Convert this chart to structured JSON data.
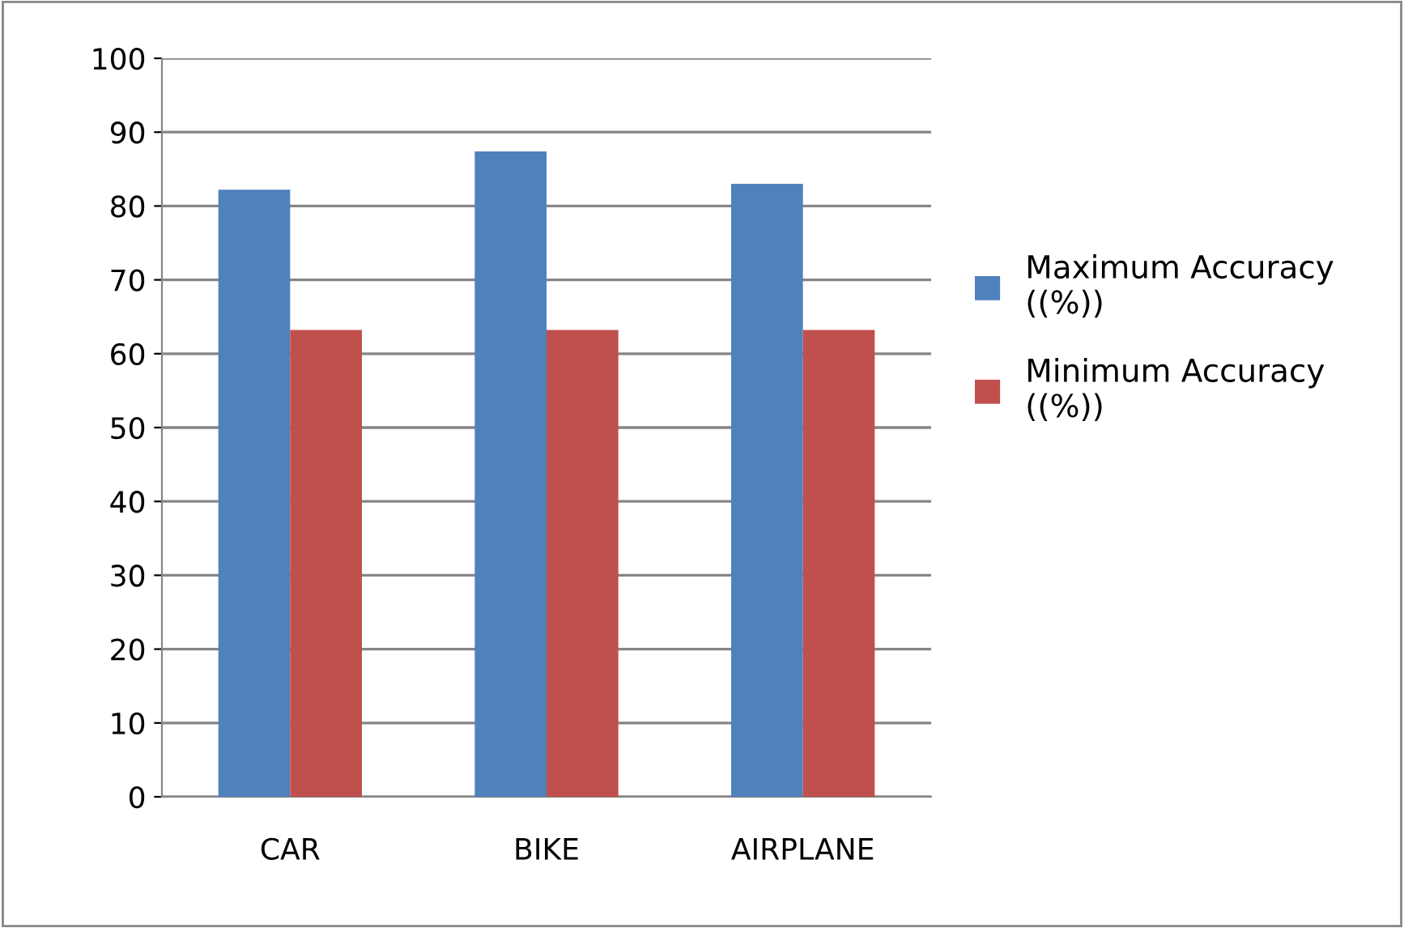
{
  "chart_data": {
    "type": "bar",
    "categories": [
      "CAR",
      "BIKE",
      "AIRPLANE"
    ],
    "series": [
      {
        "name": "Maximum Accuracy ((%))",
        "color": "#4f81bd",
        "values": [
          82.2,
          87.4,
          83
        ]
      },
      {
        "name": "Minimum Accuracy ((%))",
        "color": "#c0504d",
        "values": [
          63.2,
          63.2,
          63.2
        ]
      }
    ],
    "ylim": [
      0,
      100
    ],
    "yticks": [
      0,
      10,
      20,
      30,
      40,
      50,
      60,
      70,
      80,
      90,
      100
    ],
    "grid": "y",
    "legend": "right"
  }
}
